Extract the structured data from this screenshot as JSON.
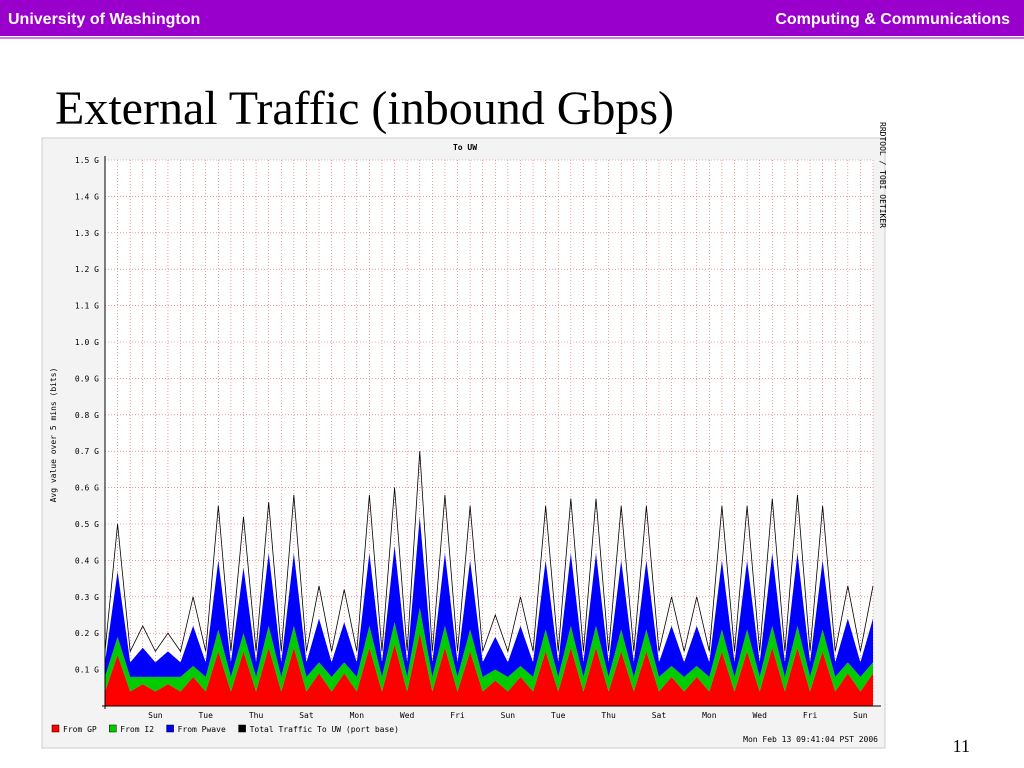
{
  "header": {
    "left": "University of Washington",
    "right": "Computing & Communications"
  },
  "slide_title": "External Traffic (inbound Gbps)",
  "page_number": "11",
  "chart_data": {
    "type": "stacked_area",
    "title": "To UW",
    "ylabel": "Avg value over 5 mins (bits)",
    "side_note": "RRDTOOL / TOBI OETIKER",
    "timestamp": "Mon Feb 13 09:41:04 PST 2006",
    "categories": [
      null,
      null,
      null,
      null,
      "Sun",
      null,
      null,
      null,
      "Tue",
      null,
      null,
      null,
      "Thu",
      null,
      null,
      null,
      "Sat",
      null,
      null,
      null,
      "Mon",
      null,
      null,
      null,
      "Wed",
      null,
      null,
      null,
      "Fri",
      null,
      null,
      null,
      "Sun",
      null,
      null,
      null,
      "Tue",
      null,
      null,
      null,
      "Thu",
      null,
      null,
      null,
      "Sat",
      null,
      null,
      null,
      "Mon",
      null,
      null,
      null,
      "Wed",
      null,
      null,
      null,
      "Fri",
      null,
      null,
      null,
      "Sun",
      null
    ],
    "series": [
      {
        "name": "From GP",
        "color": "#ff0000",
        "mark": "area",
        "values": [
          0.04,
          0.14,
          0.04,
          0.06,
          0.04,
          0.06,
          0.04,
          0.08,
          0.04,
          0.15,
          0.04,
          0.15,
          0.04,
          0.16,
          0.04,
          0.16,
          0.04,
          0.09,
          0.04,
          0.09,
          0.04,
          0.16,
          0.04,
          0.17,
          0.04,
          0.2,
          0.04,
          0.16,
          0.04,
          0.15,
          0.04,
          0.07,
          0.04,
          0.08,
          0.04,
          0.15,
          0.04,
          0.16,
          0.04,
          0.16,
          0.04,
          0.15,
          0.04,
          0.15,
          0.04,
          0.08,
          0.04,
          0.08,
          0.04,
          0.15,
          0.04,
          0.15,
          0.04,
          0.16,
          0.04,
          0.16,
          0.04,
          0.15,
          0.04,
          0.09,
          0.04,
          0.09
        ]
      },
      {
        "name": "From I2",
        "color": "#00cc00",
        "mark": "area",
        "values": [
          0.04,
          0.05,
          0.04,
          0.02,
          0.04,
          0.02,
          0.04,
          0.03,
          0.04,
          0.06,
          0.04,
          0.05,
          0.04,
          0.06,
          0.04,
          0.06,
          0.04,
          0.03,
          0.04,
          0.03,
          0.04,
          0.06,
          0.04,
          0.06,
          0.04,
          0.07,
          0.04,
          0.06,
          0.04,
          0.06,
          0.04,
          0.03,
          0.04,
          0.03,
          0.04,
          0.06,
          0.04,
          0.06,
          0.04,
          0.06,
          0.04,
          0.06,
          0.04,
          0.06,
          0.04,
          0.03,
          0.04,
          0.03,
          0.04,
          0.06,
          0.04,
          0.06,
          0.04,
          0.06,
          0.04,
          0.06,
          0.04,
          0.06,
          0.04,
          0.03,
          0.04,
          0.03
        ]
      },
      {
        "name": "From Pwave",
        "color": "#0000ff",
        "mark": "area",
        "values": [
          0.04,
          0.18,
          0.04,
          0.08,
          0.04,
          0.07,
          0.04,
          0.11,
          0.04,
          0.19,
          0.04,
          0.18,
          0.04,
          0.2,
          0.04,
          0.2,
          0.04,
          0.12,
          0.04,
          0.11,
          0.04,
          0.2,
          0.04,
          0.21,
          0.04,
          0.25,
          0.04,
          0.2,
          0.04,
          0.19,
          0.04,
          0.09,
          0.04,
          0.11,
          0.04,
          0.19,
          0.04,
          0.2,
          0.04,
          0.2,
          0.04,
          0.19,
          0.04,
          0.19,
          0.04,
          0.11,
          0.04,
          0.11,
          0.04,
          0.19,
          0.04,
          0.19,
          0.04,
          0.2,
          0.04,
          0.2,
          0.04,
          0.19,
          0.04,
          0.12,
          0.04,
          0.12
        ]
      },
      {
        "name": "Total Traffic To UW (port base)",
        "color": "#000000",
        "mark": "line",
        "values": [
          0.15,
          0.5,
          0.15,
          0.22,
          0.15,
          0.2,
          0.15,
          0.3,
          0.15,
          0.55,
          0.15,
          0.52,
          0.15,
          0.56,
          0.15,
          0.58,
          0.15,
          0.33,
          0.15,
          0.32,
          0.15,
          0.58,
          0.15,
          0.6,
          0.15,
          0.7,
          0.15,
          0.58,
          0.15,
          0.55,
          0.15,
          0.25,
          0.15,
          0.3,
          0.15,
          0.55,
          0.15,
          0.57,
          0.15,
          0.57,
          0.15,
          0.55,
          0.15,
          0.55,
          0.15,
          0.3,
          0.15,
          0.3,
          0.15,
          0.55,
          0.15,
          0.55,
          0.15,
          0.57,
          0.15,
          0.58,
          0.15,
          0.55,
          0.15,
          0.33,
          0.15,
          0.33
        ]
      }
    ],
    "ylim": [
      0,
      1.5
    ],
    "yticks": [
      {
        "value": 0.1,
        "label": "0.1 G"
      },
      {
        "value": 0.2,
        "label": "0.2 G"
      },
      {
        "value": 0.3,
        "label": "0.3 G"
      },
      {
        "value": 0.4,
        "label": "0.4 G"
      },
      {
        "value": 0.5,
        "label": "0.5 G"
      },
      {
        "value": 0.6,
        "label": "0.6 G"
      },
      {
        "value": 0.7,
        "label": "0.7 G"
      },
      {
        "value": 0.8,
        "label": "0.8 G"
      },
      {
        "value": 0.9,
        "label": "0.9 G"
      },
      {
        "value": 1.0,
        "label": "1.0 G"
      },
      {
        "value": 1.1,
        "label": "1.1 G"
      },
      {
        "value": 1.2,
        "label": "1.2 G"
      },
      {
        "value": 1.3,
        "label": "1.3 G"
      },
      {
        "value": 1.4,
        "label": "1.4 G"
      },
      {
        "value": 1.5,
        "label": "1.5 G"
      }
    ],
    "grid": true
  }
}
